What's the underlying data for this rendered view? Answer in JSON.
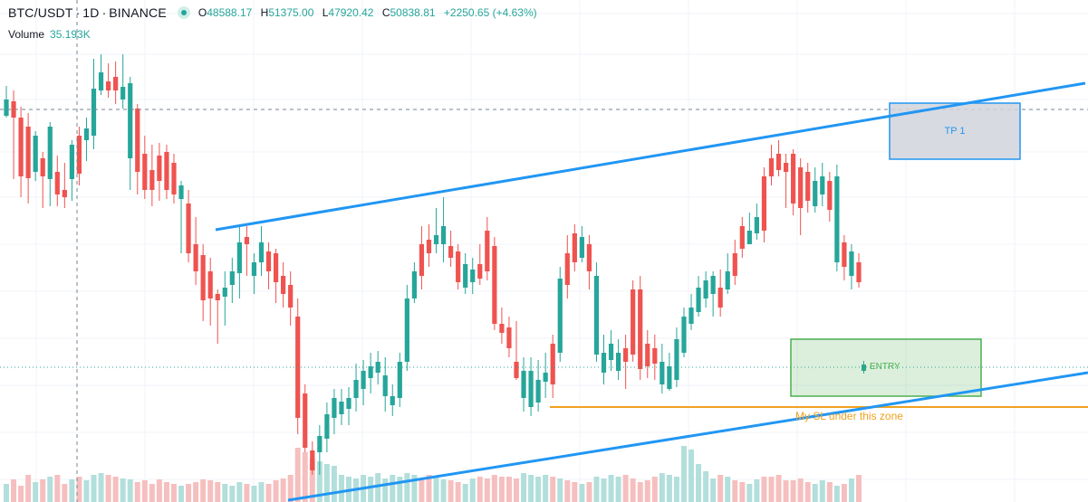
{
  "header": {
    "symbol": "BTC/USDT",
    "interval": "1D",
    "exchange": "BINANCE",
    "open_label": "O",
    "open": "48588.17",
    "high_label": "H",
    "high": "51375.00",
    "low_label": "L",
    "low": "47920.42",
    "close_label": "C",
    "close": "50838.81",
    "change": "+2250.65 (+4.63%)"
  },
  "volume": {
    "label": "Volume",
    "value": "35.193K"
  },
  "annotations": {
    "tp_label": "TP 1",
    "entry_label": "ENTRY",
    "sl_label": "My SL under this zone"
  },
  "colors": {
    "up": "#26a69a",
    "down": "#ef5350",
    "vol_up": "#b2dfdb",
    "vol_down": "#f6bfbf",
    "trendline": "#2196f3",
    "sl_line": "#f0a020",
    "entry_zone": "#4caf50",
    "tp_zone_border": "#2196f3",
    "tp_zone_fill": "#d1d4dc"
  },
  "chart_data": {
    "type": "candlestick",
    "count": 118,
    "direction": [
      "up",
      "down",
      "down",
      "down",
      "up",
      "down",
      "up",
      "down",
      "down",
      "up",
      "down",
      "up",
      "up",
      "up",
      "down",
      "down",
      "up",
      "up",
      "down",
      "down",
      "down",
      "down",
      "down",
      "down",
      "up",
      "down",
      "down",
      "down",
      "down",
      "down",
      "up",
      "up",
      "up",
      "down",
      "up",
      "up",
      "down",
      "down",
      "down",
      "down",
      "down",
      "down",
      "down",
      "up",
      "up",
      "up",
      "up",
      "up",
      "up",
      "up",
      "up",
      "up",
      "up",
      "up",
      "up",
      "up",
      "up",
      "down",
      "down",
      "up",
      "up",
      "down",
      "down",
      "up",
      "up",
      "down",
      "down",
      "down",
      "down",
      "down",
      "down",
      "up",
      "up",
      "up",
      "up",
      "down",
      "up",
      "down",
      "down",
      "up",
      "down",
      "up",
      "up",
      "up",
      "up",
      "down",
      "down",
      "down",
      "down",
      "down",
      "up",
      "up",
      "up",
      "up",
      "up",
      "up",
      "up",
      "up",
      "down",
      "up",
      "down",
      "down",
      "up",
      "up",
      "down",
      "down",
      "down",
      "down",
      "down",
      "down",
      "down",
      "up",
      "up",
      "down",
      "up",
      "down",
      "up",
      "down"
    ],
    "crosshair": {
      "value": "48588.17"
    }
  }
}
